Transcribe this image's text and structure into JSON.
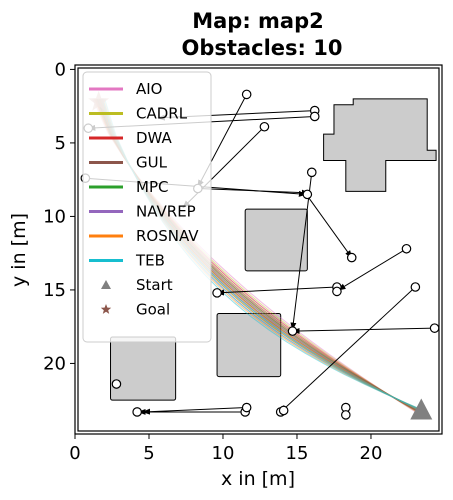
{
  "chart_data": {
    "type": "line",
    "title_line1": "Map: map2",
    "title_line2": "Obstacles: 10",
    "xlabel": "x in [m]",
    "ylabel": "y in [m]",
    "xlim": [
      0,
      24.8
    ],
    "ylim": [
      24.8,
      -0.3
    ],
    "x_ticks": [
      0,
      5,
      10,
      15,
      20
    ],
    "y_ticks": [
      0,
      5,
      10,
      15,
      20
    ],
    "grid": false,
    "legend_placement": "upper-left",
    "legend": [
      {
        "name": "AIO",
        "color": "#e377c2",
        "marker": "line"
      },
      {
        "name": "CADRL",
        "color": "#bcbd22",
        "marker": "line"
      },
      {
        "name": "DWA",
        "color": "#d62728",
        "marker": "line"
      },
      {
        "name": "GUL",
        "color": "#8c564b",
        "marker": "line"
      },
      {
        "name": "MPC",
        "color": "#2ca02c",
        "marker": "line"
      },
      {
        "name": "NAVREP",
        "color": "#9467bd",
        "marker": "line"
      },
      {
        "name": "ROSNAV",
        "color": "#ff7f0e",
        "marker": "line"
      },
      {
        "name": "TEB",
        "color": "#17becf",
        "marker": "line"
      },
      {
        "name": "Start",
        "color": "#808080",
        "marker": "triangle"
      },
      {
        "name": "Goal",
        "color": "#8c564b",
        "marker": "star"
      }
    ],
    "start": {
      "x": 23.4,
      "y": 23.2
    },
    "goal": {
      "x": 1.6,
      "y": 2.2
    },
    "static_obstacles": [
      {
        "x0": 16.8,
        "y0": 2.2,
        "x1": 24.4,
        "y1": 8.3,
        "shape": "step-polygon"
      },
      {
        "x0": 11.5,
        "y0": 9.5,
        "x1": 15.7,
        "y1": 13.7
      },
      {
        "x0": 9.6,
        "y0": 16.6,
        "x1": 13.9,
        "y1": 20.9
      },
      {
        "x0": 2.4,
        "y0": 18.2,
        "x1": 6.8,
        "y1": 22.5
      }
    ],
    "dynamic_obstacle_paths": [
      [
        [
          11.6,
          1.7
        ],
        [
          8.3,
          8.0
        ]
      ],
      [
        [
          12.8,
          3.9
        ],
        [
          7.3,
          9.4
        ]
      ],
      [
        [
          16.2,
          2.8
        ],
        [
          5.6,
          3.3
        ]
      ],
      [
        [
          16.2,
          3.2
        ],
        [
          0.9,
          4.0
        ]
      ],
      [
        [
          0.7,
          7.4
        ],
        [
          15.6,
          8.5
        ]
      ],
      [
        [
          8.3,
          8.1
        ],
        [
          15.8,
          8.4
        ]
      ],
      [
        [
          16.0,
          7.0
        ],
        [
          14.7,
          17.7
        ]
      ],
      [
        [
          15.7,
          8.6
        ],
        [
          18.7,
          12.8
        ]
      ],
      [
        [
          17.7,
          14.8
        ],
        [
          9.6,
          15.2
        ]
      ],
      [
        [
          22.4,
          12.2
        ],
        [
          17.8,
          15.0
        ]
      ],
      [
        [
          23.0,
          14.8
        ],
        [
          13.9,
          23.3
        ]
      ],
      [
        [
          24.3,
          17.6
        ],
        [
          14.7,
          17.8
        ]
      ],
      [
        [
          18.3,
          23.5
        ],
        [
          18.5,
          23.0
        ]
      ],
      [
        [
          11.5,
          23.3
        ],
        [
          4.3,
          23.3
        ]
      ],
      [
        [
          11.6,
          23.0
        ],
        [
          4.6,
          23.3
        ]
      ]
    ],
    "dynamic_obstacle_markers": [
      [
        11.6,
        1.7
      ],
      [
        16.2,
        2.8
      ],
      [
        16.2,
        3.2
      ],
      [
        12.8,
        3.9
      ],
      [
        0.9,
        4.0
      ],
      [
        0.7,
        7.4
      ],
      [
        16.0,
        7.0
      ],
      [
        15.7,
        8.5
      ],
      [
        8.3,
        8.1
      ],
      [
        18.7,
        12.8
      ],
      [
        22.4,
        12.2
      ],
      [
        17.7,
        14.8
      ],
      [
        17.7,
        15.1
      ],
      [
        9.6,
        15.2
      ],
      [
        23.0,
        14.8
      ],
      [
        14.7,
        17.8
      ],
      [
        24.3,
        17.6
      ],
      [
        18.3,
        23.0
      ],
      [
        18.3,
        23.5
      ],
      [
        4.2,
        23.3
      ],
      [
        11.5,
        23.3
      ],
      [
        11.6,
        23.0
      ],
      [
        13.9,
        23.3
      ],
      [
        14.1,
        23.2
      ],
      [
        2.8,
        21.4
      ]
    ]
  }
}
